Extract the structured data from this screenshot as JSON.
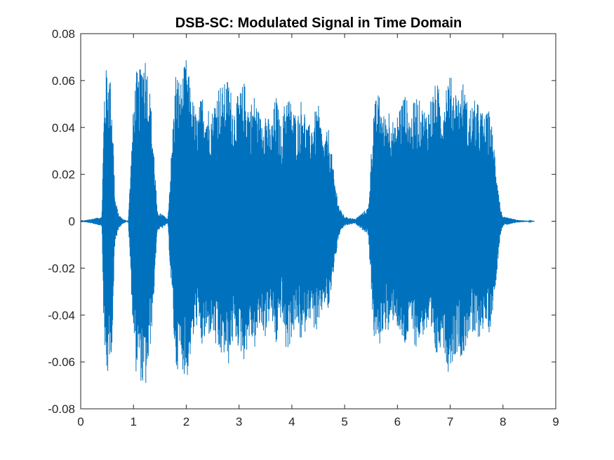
{
  "chart_data": {
    "type": "line",
    "title": "DSB-SC: Modulated Signal in Time Domain",
    "xlabel": "",
    "ylabel": "",
    "xlim": [
      0,
      9
    ],
    "ylim": [
      -0.08,
      0.08
    ],
    "xticks": [
      0,
      1,
      2,
      3,
      4,
      5,
      6,
      7,
      8,
      9
    ],
    "xtick_labels": [
      "0",
      "1",
      "2",
      "3",
      "4",
      "5",
      "6",
      "7",
      "8",
      "9"
    ],
    "yticks": [
      -0.08,
      -0.06,
      -0.04,
      -0.02,
      0,
      0.02,
      0.04,
      0.06,
      0.08
    ],
    "ytick_labels": [
      "-0.08",
      "-0.06",
      "-0.04",
      "-0.02",
      "0",
      "0.02",
      "0.04",
      "0.06",
      "0.08"
    ],
    "grid": false,
    "legend": "none",
    "series": [
      {
        "color": "#0072BD",
        "x": [
          0.0,
          0.4,
          0.45,
          0.5,
          0.55,
          0.6,
          0.65,
          0.72,
          0.8,
          0.9,
          1.0,
          1.05,
          1.1,
          1.15,
          1.2,
          1.25,
          1.3,
          1.38,
          1.45,
          1.55,
          1.65,
          1.8,
          1.9,
          2.0,
          2.1,
          2.2,
          2.3,
          2.4,
          2.5,
          2.6,
          2.7,
          2.8,
          2.9,
          3.0,
          3.1,
          3.2,
          3.3,
          3.4,
          3.5,
          3.6,
          3.7,
          3.8,
          3.9,
          4.0,
          4.1,
          4.2,
          4.3,
          4.4,
          4.5,
          4.6,
          4.7,
          4.8,
          4.9,
          5.0,
          5.2,
          5.45,
          5.55,
          5.65,
          5.75,
          5.85,
          5.95,
          6.05,
          6.15,
          6.25,
          6.35,
          6.45,
          6.55,
          6.65,
          6.75,
          6.85,
          6.95,
          7.05,
          7.15,
          7.25,
          7.35,
          7.45,
          7.55,
          7.65,
          7.75,
          7.85,
          7.95,
          8.0,
          8.3,
          8.6
        ],
        "envelope": [
          0.0,
          0.002,
          0.06,
          0.068,
          0.065,
          0.05,
          0.01,
          0.003,
          0.001,
          0.0,
          0.05,
          0.065,
          0.062,
          0.07,
          0.075,
          0.07,
          0.06,
          0.035,
          0.004,
          0.003,
          0.001,
          0.065,
          0.06,
          0.07,
          0.055,
          0.045,
          0.055,
          0.05,
          0.048,
          0.06,
          0.058,
          0.062,
          0.05,
          0.055,
          0.06,
          0.05,
          0.055,
          0.045,
          0.05,
          0.04,
          0.055,
          0.04,
          0.058,
          0.05,
          0.045,
          0.055,
          0.04,
          0.045,
          0.05,
          0.035,
          0.04,
          0.02,
          0.006,
          0.002,
          0.001,
          0.006,
          0.05,
          0.055,
          0.045,
          0.05,
          0.04,
          0.052,
          0.055,
          0.045,
          0.055,
          0.05,
          0.048,
          0.055,
          0.06,
          0.05,
          0.065,
          0.06,
          0.055,
          0.06,
          0.048,
          0.052,
          0.05,
          0.045,
          0.048,
          0.03,
          0.006,
          0.002,
          0.0005,
          0.0
        ]
      }
    ]
  }
}
